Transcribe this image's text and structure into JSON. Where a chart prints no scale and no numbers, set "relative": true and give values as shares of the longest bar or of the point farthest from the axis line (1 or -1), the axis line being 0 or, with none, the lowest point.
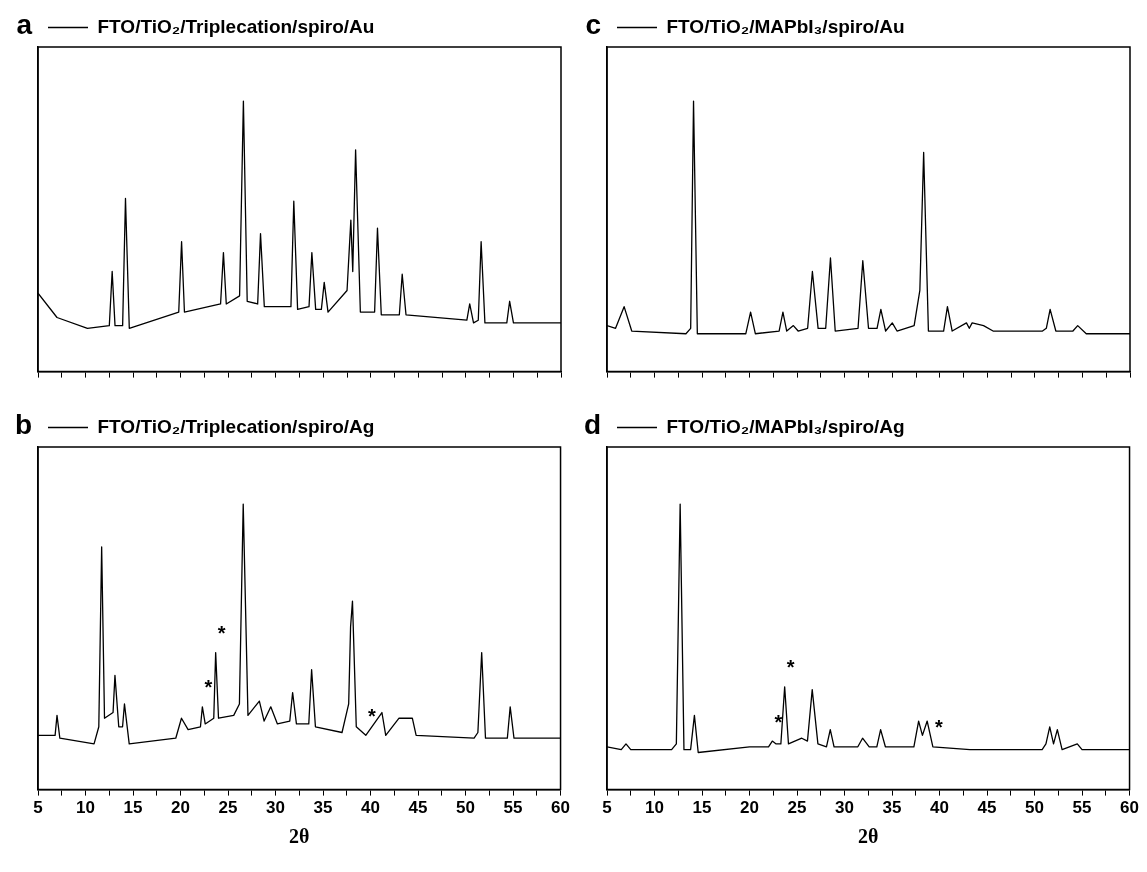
{
  "chart_data": [
    {
      "type": "line",
      "title": "a",
      "relative": true,
      "legend": "top left",
      "marker": "none",
      "tick_labels": false,
      "x": [
        5,
        7,
        10.2,
        12.5,
        12.8,
        13.1,
        13.9,
        14.2,
        14.6,
        19.8,
        20.1,
        20.4,
        24.2,
        24.5,
        24.8,
        26.2,
        26.6,
        27.0,
        28.1,
        28.4,
        28.8,
        31.6,
        31.9,
        32.3,
        33.5,
        33.8,
        34.2,
        34.8,
        35.1,
        35.5,
        37.5,
        37.9,
        38.1,
        38.4,
        38.9,
        40.4,
        40.7,
        41.1,
        43.0,
        43.3,
        43.7,
        50.1,
        50.4,
        50.8,
        51.3,
        51.6,
        52.0,
        54.3,
        54.6,
        55.0,
        60
      ],
      "xticks": [
        5,
        {
          "value": 7.5,
          "label": null
        },
        10,
        {
          "value": 12.5,
          "label": null
        },
        15,
        {
          "value": 17.5,
          "label": null
        },
        20,
        {
          "value": 22.5,
          "label": null
        },
        25,
        {
          "value": 27.5,
          "label": null
        },
        30,
        {
          "value": 32.5,
          "label": null
        },
        35,
        {
          "value": 37.5,
          "label": null
        },
        40,
        {
          "value": 42.5,
          "label": null
        },
        45,
        {
          "value": 47.5,
          "label": null
        },
        50,
        {
          "value": 52.5,
          "label": null
        },
        55,
        {
          "value": 57.5,
          "label": null
        },
        60
      ],
      "xlim": [
        5,
        60
      ],
      "series": [
        {
          "name": "FTO/TiO₂/Triplecation/spiro/Au",
          "color": "#000000",
          "values": [
            0.29,
            0.2,
            0.16,
            0.17,
            0.37,
            0.17,
            0.17,
            0.64,
            0.16,
            0.22,
            0.48,
            0.22,
            0.25,
            0.44,
            0.25,
            0.28,
            1.0,
            0.26,
            0.25,
            0.51,
            0.24,
            0.24,
            0.63,
            0.23,
            0.24,
            0.44,
            0.23,
            0.23,
            0.33,
            0.22,
            0.3,
            0.56,
            0.37,
            0.82,
            0.22,
            0.22,
            0.53,
            0.21,
            0.21,
            0.36,
            0.21,
            0.19,
            0.25,
            0.18,
            0.19,
            0.48,
            0.18,
            0.18,
            0.26,
            0.18,
            0.18
          ]
        }
      ]
    },
    {
      "type": "line",
      "title": "b",
      "relative": true,
      "legend": "top left",
      "marker": "none",
      "tick_labels": "x",
      "xlabel": "2θ",
      "x": [
        5,
        6.8,
        7.0,
        7.3,
        10.9,
        11.4,
        11.7,
        12.0,
        12.9,
        13.1,
        13.5,
        13.9,
        14.1,
        14.6,
        19.5,
        20.1,
        20.8,
        22.1,
        22.3,
        22.6,
        23.5,
        23.7,
        24.0,
        25.6,
        26.2,
        26.6,
        27.1,
        28.3,
        28.8,
        29.5,
        30.2,
        31.5,
        31.8,
        32.2,
        33.5,
        33.8,
        34.2,
        37.0,
        37.7,
        37.9,
        38.1,
        38.5,
        39.5,
        41.2,
        41.6,
        43.0,
        44.4,
        44.8,
        50.9,
        51.3,
        51.7,
        52.1,
        54.4,
        54.7,
        55.1,
        60
      ],
      "xticks": [
        5,
        {
          "value": 7.5,
          "label": null
        },
        10,
        {
          "value": 12.5,
          "label": null
        },
        15,
        {
          "value": 17.5,
          "label": null
        },
        20,
        {
          "value": 22.5,
          "label": null
        },
        25,
        {
          "value": 27.5,
          "label": null
        },
        30,
        {
          "value": 32.5,
          "label": null
        },
        35,
        {
          "value": 37.5,
          "label": null
        },
        40,
        {
          "value": 42.5,
          "label": null
        },
        45,
        {
          "value": 47.5,
          "label": null
        },
        50,
        {
          "value": 52.5,
          "label": null
        },
        55,
        {
          "value": 57.5,
          "label": null
        },
        60
      ],
      "xlim": [
        5,
        60
      ],
      "annotations": [
        {
          "text": "*",
          "x": 22.3,
          "y": 0.29
        },
        {
          "text": "*",
          "x": 23.7,
          "y": 0.48
        },
        {
          "text": "*",
          "x": 39.5,
          "y": 0.19
        }
      ],
      "series": [
        {
          "name": "FTO/TiO₂/Triplecation/spiro/Ag",
          "color": "#000000",
          "values": [
            0.19,
            0.19,
            0.26,
            0.18,
            0.16,
            0.22,
            0.85,
            0.25,
            0.27,
            0.4,
            0.22,
            0.22,
            0.3,
            0.16,
            0.18,
            0.25,
            0.21,
            0.22,
            0.29,
            0.23,
            0.25,
            0.48,
            0.25,
            0.26,
            0.3,
            1.0,
            0.26,
            0.31,
            0.24,
            0.29,
            0.23,
            0.24,
            0.34,
            0.23,
            0.23,
            0.42,
            0.22,
            0.2,
            0.3,
            0.57,
            0.66,
            0.22,
            0.19,
            0.27,
            0.19,
            0.25,
            0.25,
            0.19,
            0.18,
            0.2,
            0.48,
            0.18,
            0.18,
            0.29,
            0.18,
            0.18
          ]
        }
      ]
    },
    {
      "type": "line",
      "title": "c",
      "relative": true,
      "legend": "top left",
      "marker": "none",
      "tick_labels": false,
      "x": [
        5,
        5.9,
        6.8,
        7.6,
        13.3,
        13.8,
        14.1,
        14.5,
        19.6,
        20.1,
        20.6,
        23.1,
        23.5,
        23.9,
        24.6,
        25.1,
        26.1,
        26.6,
        27.2,
        28.0,
        28.5,
        29.0,
        31.4,
        31.9,
        32.5,
        33.4,
        33.8,
        34.3,
        35.0,
        35.5,
        37.3,
        37.9,
        38.3,
        38.8,
        39.7,
        40.4,
        40.8,
        41.3,
        42.8,
        43.1,
        43.4,
        44.6,
        45.6,
        50.8,
        51.2,
        51.6,
        52.2,
        54.0,
        54.5,
        55.4,
        60
      ],
      "xticks": [
        5,
        {
          "value": 7.5,
          "label": null
        },
        10,
        {
          "value": 12.5,
          "label": null
        },
        15,
        {
          "value": 17.5,
          "label": null
        },
        20,
        {
          "value": 22.5,
          "label": null
        },
        25,
        {
          "value": 27.5,
          "label": null
        },
        30,
        {
          "value": 32.5,
          "label": null
        },
        35,
        {
          "value": 37.5,
          "label": null
        },
        40,
        {
          "value": 42.5,
          "label": null
        },
        45,
        {
          "value": 47.5,
          "label": null
        },
        50,
        {
          "value": 52.5,
          "label": null
        },
        55,
        {
          "value": 57.5,
          "label": null
        },
        60
      ],
      "xlim": [
        5,
        60
      ],
      "series": [
        {
          "name": "FTO/TiO₂/MAPbI₃/spiro/Au",
          "color": "#000000",
          "values": [
            0.17,
            0.16,
            0.24,
            0.15,
            0.14,
            0.16,
            1.0,
            0.14,
            0.14,
            0.22,
            0.14,
            0.15,
            0.22,
            0.15,
            0.17,
            0.15,
            0.16,
            0.37,
            0.16,
            0.16,
            0.42,
            0.15,
            0.16,
            0.41,
            0.16,
            0.16,
            0.23,
            0.15,
            0.18,
            0.15,
            0.17,
            0.3,
            0.81,
            0.15,
            0.15,
            0.15,
            0.24,
            0.15,
            0.18,
            0.16,
            0.18,
            0.17,
            0.15,
            0.15,
            0.16,
            0.23,
            0.15,
            0.15,
            0.17,
            0.14,
            0.14
          ]
        }
      ]
    },
    {
      "type": "line",
      "title": "d",
      "relative": true,
      "legend": "top left",
      "marker": "none",
      "tick_labels": "x",
      "xlabel": "2θ",
      "x": [
        5,
        6.5,
        7.0,
        7.5,
        11.8,
        12.3,
        12.7,
        13.1,
        13.8,
        14.2,
        14.6,
        20.0,
        22.0,
        22.4,
        22.8,
        23.3,
        23.7,
        24.1,
        25.5,
        26.1,
        26.6,
        27.2,
        28.1,
        28.5,
        28.9,
        31.4,
        31.9,
        32.6,
        33.4,
        33.8,
        34.3,
        37.3,
        37.8,
        38.2,
        38.7,
        39.3,
        43.2,
        50.8,
        51.2,
        51.6,
        52.0,
        52.4,
        52.9,
        54.5,
        55.0,
        60
      ],
      "xticks": [
        5,
        {
          "value": 7.5,
          "label": null
        },
        10,
        {
          "value": 12.5,
          "label": null
        },
        15,
        {
          "value": 17.5,
          "label": null
        },
        20,
        {
          "value": 22.5,
          "label": null
        },
        25,
        {
          "value": 27.5,
          "label": null
        },
        30,
        {
          "value": 32.5,
          "label": null
        },
        35,
        {
          "value": 37.5,
          "label": null
        },
        40,
        {
          "value": 42.5,
          "label": null
        },
        45,
        {
          "value": 47.5,
          "label": null
        },
        50,
        {
          "value": 52.5,
          "label": null
        },
        55,
        {
          "value": 57.5,
          "label": null
        },
        60
      ],
      "xlim": [
        5,
        60
      ],
      "annotations": [
        {
          "text": "*",
          "x": 22.4,
          "y": 0.17
        },
        {
          "text": "*",
          "x": 23.7,
          "y": 0.36
        },
        {
          "text": "*",
          "x": 39.3,
          "y": 0.15
        }
      ],
      "series": [
        {
          "name": "FTO/TiO₂/MAPbI₃/spiro/Ag",
          "color": "#000000",
          "values": [
            0.15,
            0.14,
            0.16,
            0.14,
            0.14,
            0.16,
            1.0,
            0.14,
            0.14,
            0.26,
            0.13,
            0.15,
            0.15,
            0.17,
            0.16,
            0.16,
            0.36,
            0.16,
            0.18,
            0.17,
            0.35,
            0.16,
            0.15,
            0.21,
            0.15,
            0.15,
            0.18,
            0.15,
            0.15,
            0.21,
            0.15,
            0.15,
            0.24,
            0.19,
            0.24,
            0.15,
            0.14,
            0.14,
            0.16,
            0.22,
            0.16,
            0.21,
            0.14,
            0.16,
            0.14,
            0.14
          ]
        }
      ]
    }
  ]
}
